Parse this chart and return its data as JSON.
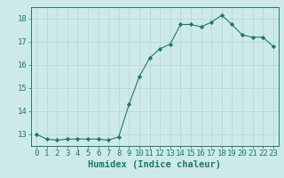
{
  "x": [
    0,
    1,
    2,
    3,
    4,
    5,
    6,
    7,
    8,
    9,
    10,
    11,
    12,
    13,
    14,
    15,
    16,
    17,
    18,
    19,
    20,
    21,
    22,
    23
  ],
  "y": [
    13.0,
    12.8,
    12.75,
    12.8,
    12.8,
    12.8,
    12.8,
    12.75,
    12.9,
    14.3,
    15.5,
    16.3,
    16.7,
    16.9,
    17.75,
    17.75,
    17.65,
    17.85,
    18.15,
    17.75,
    17.3,
    17.2,
    17.2,
    16.8
  ],
  "line_color": "#1a7a6e",
  "marker": "D",
  "marker_size": 2.2,
  "bg_color": "#ceeae8",
  "grid_color": "#b8d8d6",
  "xlabel": "Humidex (Indice chaleur)",
  "xlim": [
    -0.5,
    23.5
  ],
  "ylim": [
    12.5,
    18.5
  ],
  "yticks": [
    13,
    14,
    15,
    16,
    17,
    18
  ],
  "xticks": [
    0,
    1,
    2,
    3,
    4,
    5,
    6,
    7,
    8,
    9,
    10,
    11,
    12,
    13,
    14,
    15,
    16,
    17,
    18,
    19,
    20,
    21,
    22,
    23
  ],
  "xlabel_fontsize": 7.5,
  "tick_fontsize": 6.5
}
